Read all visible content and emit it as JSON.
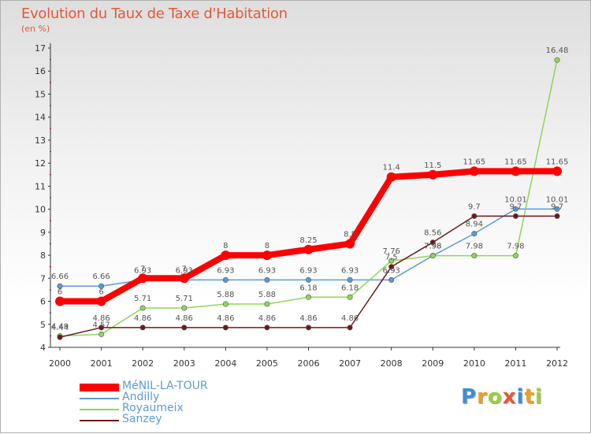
{
  "header": {
    "title": "Evolution du Taux de Taxe d'Habitation",
    "subtitle": "(en %)"
  },
  "logo": {
    "text": "Proxiti",
    "letter_colors": [
      "#3a8fd8",
      "#e8a020",
      "#9ccf3a",
      "#e05a3a",
      "#3a8fd8",
      "#e8a020",
      "#9ccf3a"
    ]
  },
  "colors": {
    "title": "#e05a3a",
    "axis": "#333333",
    "tick_label": "#333333"
  },
  "chart_data": {
    "type": "line",
    "title": "Evolution du Taux de Taxe d'Habitation",
    "ylabel": "(en %)",
    "xlabel": "",
    "x": [
      "2000",
      "2001",
      "2002",
      "2003",
      "2004",
      "2005",
      "2006",
      "2007",
      "2008",
      "2009",
      "2010",
      "2011",
      "2012"
    ],
    "ylim": [
      4,
      17
    ],
    "yticks": [
      4,
      5,
      6,
      7,
      8,
      9,
      10,
      11,
      12,
      13,
      14,
      15,
      16,
      17
    ],
    "grid": false,
    "legend_position": "bottom-left",
    "series": [
      {
        "name": "MéNIL-LA-TOUR",
        "color": "#ff0000",
        "values": [
          6,
          6,
          7,
          7,
          8,
          8,
          8.25,
          8.5,
          11.4,
          11.5,
          11.65,
          11.65,
          11.65
        ],
        "labels": [
          "6",
          "6",
          "7",
          "7",
          "8",
          "8",
          "8.25",
          "8.5",
          "11.4",
          "11.5",
          "11.65",
          "11.65",
          "11.65"
        ]
      },
      {
        "name": "Andilly",
        "color": "#5a9bd5",
        "values": [
          6.66,
          6.66,
          6.93,
          6.93,
          6.93,
          6.93,
          6.93,
          6.93,
          6.93,
          7.98,
          8.94,
          10.01,
          10.01
        ],
        "labels": [
          "6.66",
          "6.66",
          "6.93",
          "6.93",
          "6.93",
          "6.93",
          "6.93",
          "6.93",
          "6.93",
          "7.98",
          "8.94",
          "10.01",
          "10.01"
        ]
      },
      {
        "name": "Royaumeix",
        "color": "#8ed65a",
        "values": [
          4.49,
          4.57,
          5.71,
          5.71,
          5.88,
          5.88,
          6.18,
          6.18,
          7.76,
          7.98,
          7.98,
          7.98,
          16.48
        ],
        "labels": [
          "4.49",
          "4.57",
          "5.71",
          "5.71",
          "5.88",
          "5.88",
          "6.18",
          "6.18",
          "7.76",
          "7.98",
          "7.98",
          "7.98",
          "16.48"
        ]
      },
      {
        "name": "Sanzey",
        "color": "#6b1a1a",
        "values": [
          4.44,
          4.86,
          4.86,
          4.86,
          4.86,
          4.86,
          4.86,
          4.86,
          7.5,
          8.56,
          9.7,
          9.7,
          9.7
        ],
        "labels": [
          "4.44",
          "4.86",
          "4.86",
          "4.86",
          "4.86",
          "4.86",
          "4.86",
          "4.86",
          "7.5",
          "8.56",
          "9.7",
          "9.7",
          "9.7"
        ]
      }
    ]
  }
}
